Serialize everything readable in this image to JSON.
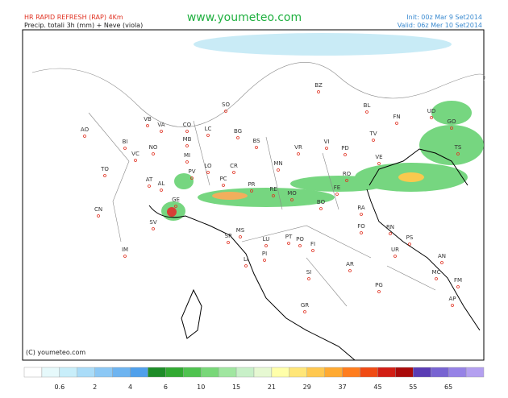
{
  "header": {
    "title": "HR RAPID REFRESH (RAP) 4Km",
    "subtitle": "Precip. totali 3h (mm) + Neve (viola)",
    "site": "www.youmeteo.com",
    "init": "Init: 00z Mar  9  Set2014",
    "valid": "Valid: 06z Mer  10 Set2014"
  },
  "copyright": "(C) youmeteo.com",
  "cities": [
    "BZ",
    "SO",
    "BL",
    "FN",
    "UD",
    "GO",
    "AO",
    "VB",
    "VA",
    "CO",
    "LC",
    "BG",
    "TV",
    "BI",
    "NO",
    "MB",
    "BS",
    "VR",
    "VI",
    "PD",
    "TS",
    "VC",
    "MI",
    "CR",
    "MN",
    "VE",
    "TO",
    "AT",
    "PV",
    "LO",
    "PC",
    "PR",
    "RE",
    "MO",
    "FE",
    "RO",
    "CN",
    "AL",
    "GE",
    "BO",
    "RA",
    "SV",
    "FO",
    "RN",
    "PS",
    "IM",
    "SP",
    "MS",
    "LU",
    "PT",
    "PO",
    "FI",
    "PI",
    "LI",
    "UR",
    "AN",
    "AR",
    "SI",
    "MC",
    "PG",
    "FM",
    "GR",
    "AP"
  ],
  "colorbar": {
    "labels": [
      0.6,
      2,
      4,
      6,
      10,
      15,
      21,
      29,
      37,
      45,
      55,
      65
    ],
    "colors": [
      "#ffffff",
      "#e6f9fb",
      "#c8eefa",
      "#aadcf8",
      "#8cc8f5",
      "#6eb4f0",
      "#50a0eb",
      "#1e8c28",
      "#32aa32",
      "#50c350",
      "#78d778",
      "#a0e6a0",
      "#c8f0c8",
      "#e6f8d2",
      "#ffffaa",
      "#ffe678",
      "#ffc850",
      "#ffaa32",
      "#ff7d1e",
      "#f04b14",
      "#d21e14",
      "#aa0a0a",
      "#5a3cb4",
      "#7864d2",
      "#9682e6",
      "#b4a0f0"
    ]
  }
}
